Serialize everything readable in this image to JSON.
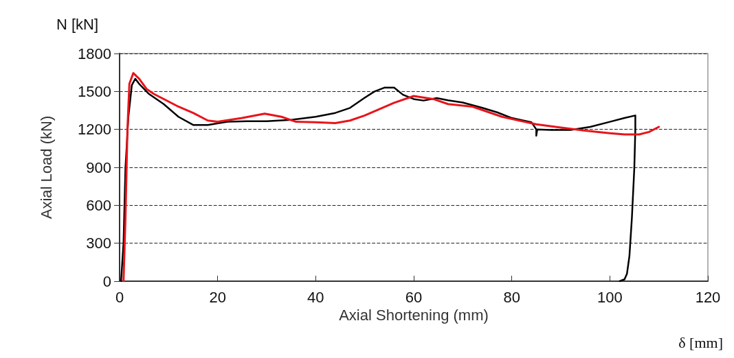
{
  "chart_data": {
    "type": "line",
    "xlabel": "Axial Shortening (mm)",
    "ylabel": "Axial Load (kN)",
    "annotations": [
      "N [kN]",
      "δ [mm]"
    ],
    "xlim": [
      0,
      120
    ],
    "xticks": [
      0,
      20,
      40,
      60,
      80,
      100,
      120
    ],
    "ylim": [
      0,
      1800
    ],
    "yticks": [
      0,
      300,
      600,
      900,
      1200,
      1500,
      1800
    ],
    "grid": "y",
    "marker": "none",
    "line_style": "solid",
    "series": [
      {
        "color": "#000000",
        "x": [
          0.3,
          0.8,
          1.2,
          1.8,
          2.5,
          3.2,
          4,
          6,
          9,
          12,
          15,
          18,
          22,
          26,
          30,
          35,
          40,
          44,
          47,
          50,
          52,
          54,
          56,
          57.8,
          60,
          62,
          64.7,
          67,
          70,
          74,
          77,
          80,
          84,
          85,
          85,
          85.2,
          88,
          92,
          96,
          100,
          103,
          105.2,
          105.2,
          105,
          104.5,
          104,
          103.5,
          103,
          102
        ],
        "values": [
          0,
          300,
          900,
          1300,
          1550,
          1600,
          1560,
          1480,
          1400,
          1300,
          1235,
          1235,
          1260,
          1265,
          1265,
          1275,
          1300,
          1330,
          1370,
          1450,
          1500,
          1530,
          1530,
          1474,
          1440,
          1428,
          1448,
          1430,
          1412,
          1370,
          1335,
          1290,
          1257,
          1200,
          1150,
          1200,
          1195,
          1195,
          1220,
          1260,
          1290,
          1310,
          1200,
          900,
          500,
          200,
          60,
          15,
          0
        ]
      },
      {
        "color": "#e8141a",
        "x": [
          0.8,
          1.2,
          1.6,
          2,
          2.8,
          4,
          5.5,
          7,
          9.5,
          12,
          15,
          18,
          20,
          25,
          29.6,
          33,
          36,
          40,
          44,
          47,
          50,
          53,
          56,
          60,
          64,
          67,
          72,
          78,
          85,
          90,
          95,
          100,
          103,
          106,
          108,
          110
        ],
        "values": [
          0,
          500,
          1200,
          1560,
          1645,
          1600,
          1520,
          1480,
          1430,
          1380,
          1330,
          1270,
          1260,
          1290,
          1324,
          1300,
          1260,
          1257,
          1250,
          1270,
          1310,
          1360,
          1410,
          1464,
          1440,
          1400,
          1380,
          1300,
          1240,
          1215,
          1190,
          1170,
          1160,
          1160,
          1180,
          1220
        ]
      }
    ]
  }
}
